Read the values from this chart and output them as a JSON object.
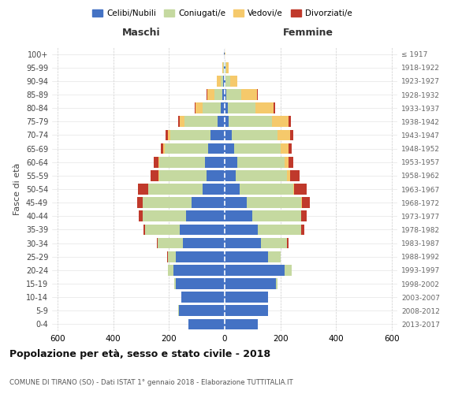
{
  "age_groups": [
    "0-4",
    "5-9",
    "10-14",
    "15-19",
    "20-24",
    "25-29",
    "30-34",
    "35-39",
    "40-44",
    "45-49",
    "50-54",
    "55-59",
    "60-64",
    "65-69",
    "70-74",
    "75-79",
    "80-84",
    "85-89",
    "90-94",
    "95-99",
    "100+"
  ],
  "birth_years": [
    "2013-2017",
    "2008-2012",
    "2003-2007",
    "1998-2002",
    "1993-1997",
    "1988-1992",
    "1983-1987",
    "1978-1982",
    "1973-1977",
    "1968-1972",
    "1963-1967",
    "1958-1962",
    "1953-1957",
    "1948-1952",
    "1943-1947",
    "1938-1942",
    "1933-1937",
    "1928-1932",
    "1923-1927",
    "1918-1922",
    "≤ 1917"
  ],
  "colors": {
    "celibe": "#4472c4",
    "coniugato": "#c5d9a0",
    "vedovo": "#f5c96b",
    "divorziato": "#c0392b"
  },
  "maschi": {
    "celibe": [
      130,
      165,
      155,
      175,
      185,
      175,
      150,
      160,
      140,
      120,
      80,
      65,
      70,
      60,
      50,
      25,
      15,
      8,
      5,
      4,
      2
    ],
    "coniugato": [
      0,
      2,
      2,
      5,
      20,
      30,
      90,
      125,
      155,
      175,
      195,
      170,
      165,
      155,
      145,
      120,
      65,
      30,
      8,
      2,
      0
    ],
    "vedovo": [
      0,
      0,
      0,
      0,
      0,
      0,
      0,
      0,
      0,
      0,
      1,
      2,
      3,
      5,
      8,
      15,
      25,
      25,
      15,
      3,
      0
    ],
    "divorziato": [
      0,
      0,
      0,
      0,
      0,
      2,
      4,
      8,
      15,
      20,
      35,
      30,
      18,
      10,
      10,
      8,
      3,
      2,
      0,
      0,
      0
    ]
  },
  "femmine": {
    "celibe": [
      120,
      155,
      155,
      185,
      215,
      155,
      130,
      120,
      100,
      80,
      55,
      40,
      45,
      35,
      25,
      15,
      10,
      5,
      4,
      3,
      1
    ],
    "coniugato": [
      0,
      0,
      2,
      5,
      25,
      45,
      95,
      155,
      175,
      195,
      190,
      185,
      170,
      165,
      165,
      155,
      100,
      55,
      15,
      3,
      0
    ],
    "vedovo": [
      0,
      0,
      0,
      0,
      0,
      0,
      0,
      0,
      0,
      2,
      5,
      10,
      15,
      30,
      45,
      60,
      65,
      55,
      25,
      8,
      2
    ],
    "divorziato": [
      0,
      0,
      0,
      0,
      0,
      2,
      5,
      10,
      20,
      30,
      45,
      35,
      15,
      12,
      10,
      8,
      5,
      3,
      1,
      0,
      0
    ]
  },
  "xlim": 620,
  "title": "Popolazione per età, sesso e stato civile - 2018",
  "subtitle": "COMUNE DI TIRANO (SO) - Dati ISTAT 1° gennaio 2018 - Elaborazione TUTTITALIA.IT",
  "xlabel_left": "Maschi",
  "xlabel_right": "Femmine",
  "ylabel_left": "Fasce di età",
  "legend_labels": [
    "Celibi/Nubili",
    "Coniugati/e",
    "Vedovi/e",
    "Divorziati/e"
  ],
  "background_color": "#ffffff",
  "grid_color": "#cccccc"
}
